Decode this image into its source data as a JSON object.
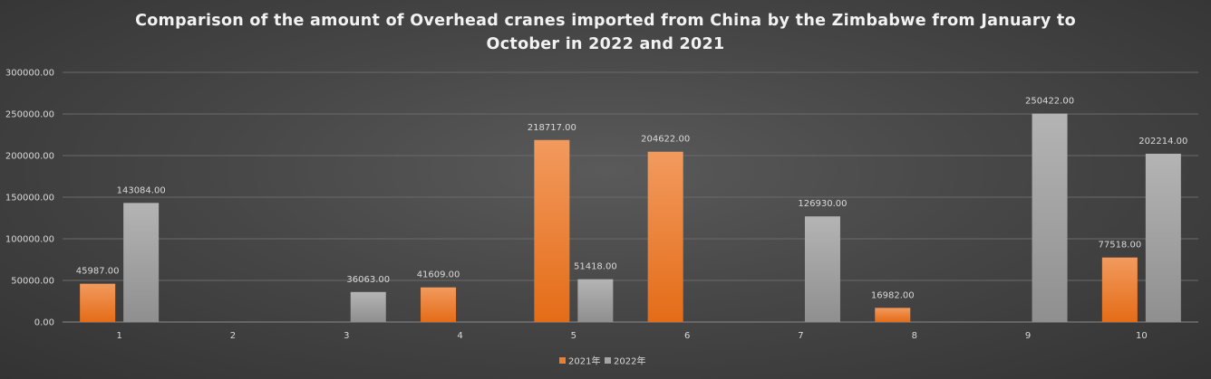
{
  "chart_data": {
    "type": "bar",
    "title": "Comparison of the amount of Overhead cranes imported from China by the Zimbabwe from January to October in 2022 and 2021",
    "title_lines": [
      "Comparison of the amount of Overhead cranes imported from China by the Zimbabwe from January to",
      "October in 2022 and 2021"
    ],
    "categories": [
      "1",
      "2",
      "3",
      "4",
      "5",
      "6",
      "7",
      "8",
      "9",
      "10"
    ],
    "series": [
      {
        "name": "2021年",
        "color": "#ed7d31",
        "values": [
          45987.0,
          null,
          null,
          41609.0,
          218717.0,
          204622.0,
          null,
          16982.0,
          null,
          77518.0
        ],
        "labels": [
          "45987.00",
          null,
          null,
          "41609.00",
          "218717.00",
          "204622.00",
          null,
          "16982.00",
          null,
          "77518.00"
        ]
      },
      {
        "name": "2022年",
        "color": "#a5a5a5",
        "values": [
          143084.0,
          null,
          36063.0,
          null,
          51418.0,
          null,
          126930.0,
          null,
          250422.0,
          202214.0
        ],
        "labels": [
          "143084.00",
          null,
          "36063.00",
          null,
          "51418.00",
          null,
          "126930.00",
          null,
          "250422.00",
          "202214.00"
        ]
      }
    ],
    "ylim": [
      0,
      300000
    ],
    "yticks": [
      0,
      50000,
      100000,
      150000,
      200000,
      250000,
      300000
    ],
    "ytick_labels": [
      "0.00",
      "50000.00",
      "100000.00",
      "150000.00",
      "200000.00",
      "250000.00",
      "300000.00"
    ],
    "xlabel": "",
    "ylabel": "",
    "grid": true,
    "legend_position": "bottom"
  }
}
